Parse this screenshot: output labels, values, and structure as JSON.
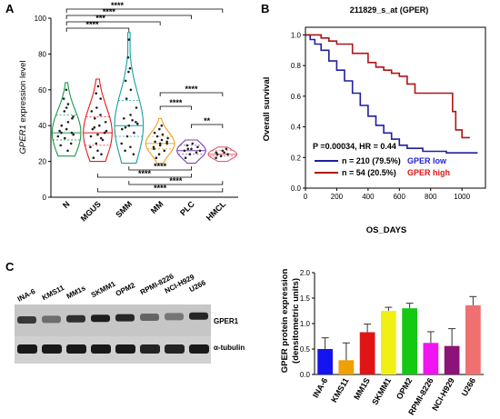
{
  "panels": {
    "a": "A",
    "b": "B",
    "c": "C"
  },
  "chart_data": [
    {
      "type": "violin",
      "ylabel_italic": "GPER1",
      "ylabel_rest": " expression level",
      "ylim": [
        0,
        100
      ],
      "yticks": [
        "0",
        "20",
        "40",
        "60",
        "80",
        "100"
      ],
      "categories": [
        "N",
        "MGUS",
        "SMM",
        "MM",
        "PLC",
        "HMCL"
      ],
      "colors": [
        "#1a9850",
        "#e41a1c",
        "#17a0a0",
        "#f0a020",
        "#7b3fb0",
        "#e06070"
      ],
      "medians": [
        36,
        36,
        40,
        30,
        26,
        24
      ],
      "quartiles": [
        [
          32,
          46
        ],
        [
          29,
          45
        ],
        [
          34,
          54
        ],
        [
          27,
          34
        ],
        [
          24,
          29
        ],
        [
          23,
          26
        ]
      ],
      "ranges": [
        [
          23,
          64
        ],
        [
          20,
          66
        ],
        [
          19,
          92
        ],
        [
          19,
          44
        ],
        [
          19,
          32
        ],
        [
          20,
          28
        ]
      ],
      "points": [
        [
          34,
          33,
          36,
          37,
          38,
          35,
          40,
          42,
          45,
          48,
          52,
          55,
          60,
          30,
          29,
          50,
          44,
          36,
          26
        ],
        [
          28,
          30,
          32,
          34,
          35,
          36,
          38,
          40,
          42,
          44,
          46,
          48,
          50,
          24,
          22,
          26,
          55,
          58,
          62,
          37,
          39,
          33
        ],
        [
          30,
          34,
          36,
          38,
          40,
          42,
          44,
          46,
          50,
          55,
          60,
          65,
          70,
          72,
          78,
          88,
          24,
          26,
          28,
          41,
          39,
          43
        ],
        [
          22,
          24,
          26,
          28,
          29,
          30,
          31,
          32,
          33,
          34,
          35,
          36,
          38,
          40,
          27,
          30,
          31
        ],
        [
          22,
          24,
          25,
          26,
          27,
          28,
          29,
          30,
          26,
          27
        ],
        [
          22,
          23,
          24,
          25,
          26,
          27,
          24,
          25
        ]
      ],
      "sig_top": [
        {
          "from": 0,
          "to": 5,
          "label": "****"
        },
        {
          "from": 0,
          "to": 4,
          "label": "****"
        },
        {
          "from": 0,
          "to": 3,
          "label": "***"
        },
        {
          "from": 0,
          "to": 2,
          "label": "****"
        }
      ],
      "sig_right": [
        {
          "from": 3,
          "to": 5,
          "label": "****"
        },
        {
          "from": 3,
          "to": 4,
          "label": "****"
        },
        {
          "from": 4,
          "to": 5,
          "label": "**"
        }
      ],
      "sig_bottom": [
        {
          "from": 2,
          "to": 4,
          "label": "****"
        },
        {
          "from": 1,
          "to": 4,
          "label": "****"
        },
        {
          "from": 2,
          "to": 5,
          "label": "****"
        },
        {
          "from": 1,
          "to": 5,
          "label": "****"
        }
      ]
    },
    {
      "type": "line",
      "title": "211829_s_at (GPER)",
      "xlabel": "OS_DAYS",
      "ylabel": "Overall survival",
      "xlim": [
        0,
        1150
      ],
      "ylim": [
        0,
        1.05
      ],
      "xticks": [
        0,
        200,
        400,
        600,
        800,
        1000
      ],
      "yticks": [
        "0.0",
        "0.2",
        "0.4",
        "0.6",
        "0.8",
        "1.0"
      ],
      "stat_text": "P =0.00034, HR = 0.44",
      "series": [
        {
          "name": "GPER low",
          "legend_n": "n = 210 (79.5%)",
          "color": "#1f1fa0",
          "x": [
            0,
            30,
            60,
            100,
            150,
            200,
            250,
            300,
            350,
            400,
            450,
            500,
            550,
            600,
            650,
            700,
            750,
            800,
            900,
            950,
            1000,
            1100
          ],
          "y": [
            1.0,
            0.97,
            0.94,
            0.9,
            0.83,
            0.77,
            0.7,
            0.62,
            0.54,
            0.47,
            0.41,
            0.36,
            0.32,
            0.28,
            0.26,
            0.26,
            0.24,
            0.24,
            0.23,
            0.23,
            0.23,
            0.23
          ]
        },
        {
          "name": "GPER high",
          "legend_n": "n = 54 (20.5%)",
          "color": "#b01414",
          "x": [
            0,
            50,
            100,
            150,
            200,
            300,
            400,
            450,
            500,
            550,
            600,
            650,
            700,
            800,
            900,
            940,
            960,
            1000,
            1050
          ],
          "y": [
            1.0,
            1.0,
            0.98,
            0.96,
            0.94,
            0.88,
            0.82,
            0.79,
            0.77,
            0.75,
            0.73,
            0.68,
            0.62,
            0.62,
            0.62,
            0.5,
            0.38,
            0.33,
            0.33
          ]
        }
      ]
    },
    {
      "type": "bar",
      "ylabel": "GPER protein expression (densitometric units)",
      "ylim": [
        0,
        2.0
      ],
      "yticks": [
        "0.0",
        "0.5",
        "1.0",
        "1.5",
        "2.0"
      ],
      "categories": [
        "INA-6",
        "KMS11",
        "MM1S",
        "SKMM1",
        "OPM2",
        "RPMI-8226",
        "NCI-H929",
        "U266"
      ],
      "values": [
        0.5,
        0.28,
        0.83,
        1.25,
        1.3,
        0.62,
        0.56,
        1.36
      ],
      "errors": [
        0.22,
        0.34,
        0.16,
        0.07,
        0.1,
        0.22,
        0.34,
        0.17
      ],
      "colors": [
        "#1414f0",
        "#f0a000",
        "#e01414",
        "#f0f014",
        "#14c814",
        "#f014f0",
        "#8c1478",
        "#f07070"
      ]
    }
  ],
  "blot": {
    "lanes": [
      "INA-6",
      "KMS11",
      "MM1s",
      "SKMM1",
      "OPM2",
      "RPMI-8226",
      "NCI-H929",
      "U266"
    ],
    "label_gper1": "GPER1",
    "label_tubulin": "α-tubulin",
    "gper1_intensity": [
      0.8,
      0.5,
      0.85,
      0.95,
      0.9,
      0.55,
      0.45,
      0.9
    ],
    "tubulin_intensity": [
      0.95,
      0.95,
      0.95,
      0.95,
      0.95,
      0.9,
      0.9,
      0.95
    ]
  }
}
